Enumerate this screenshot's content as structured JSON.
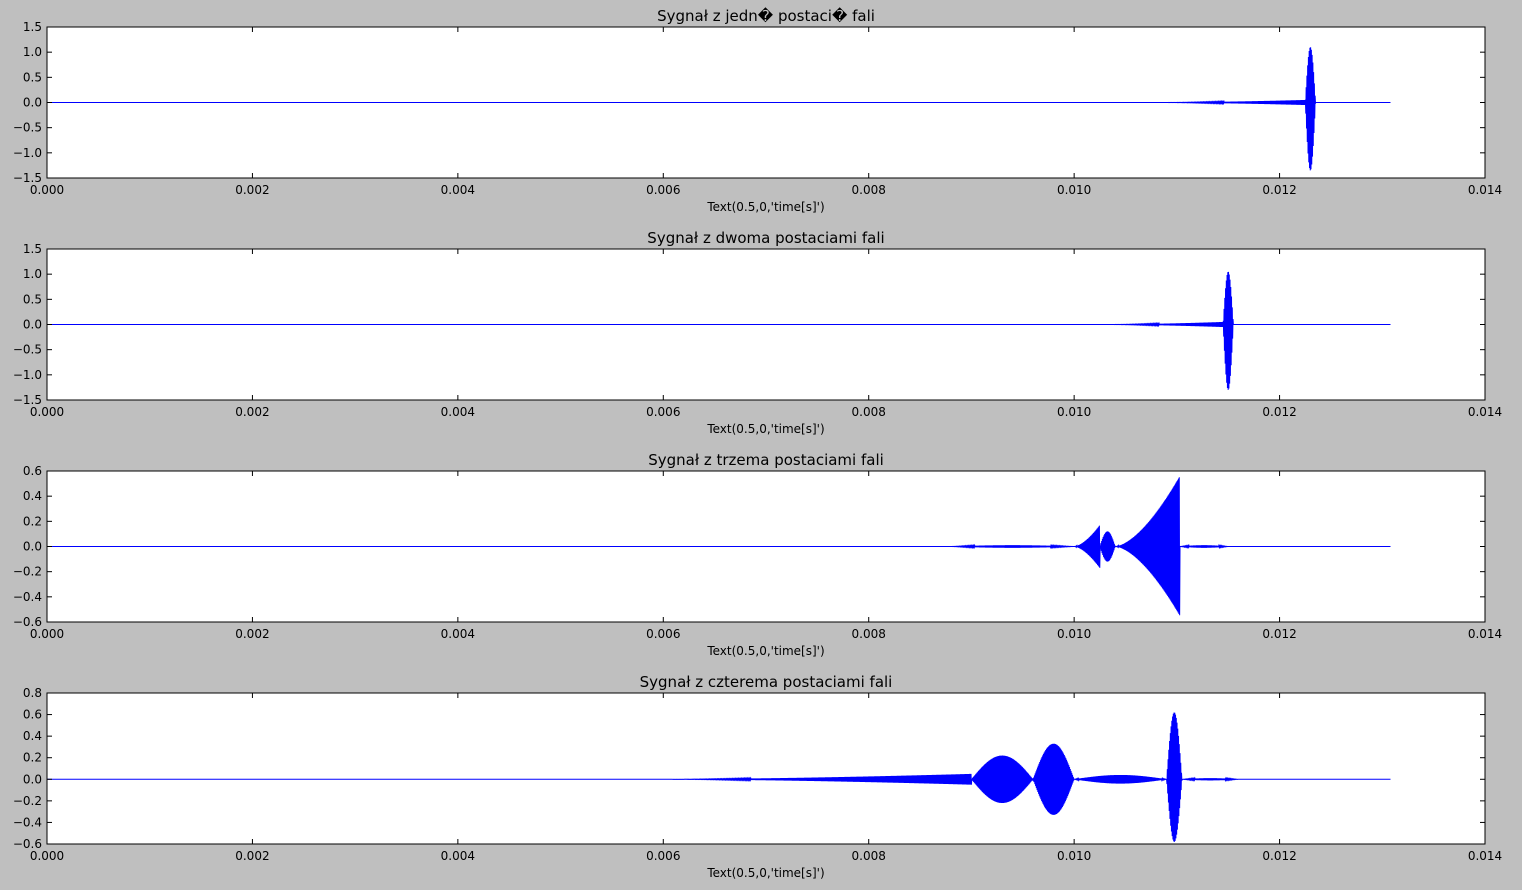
{
  "figure": {
    "background": "#bfbfbf",
    "axes_background": "#ffffff",
    "line_color": "#0000ff"
  },
  "chart_data": [
    {
      "type": "line",
      "title": "Sygnał z jedn� postaci� fali",
      "xlabel": "Text(0.5,0,'time[s]')",
      "ylabel": "",
      "xlim": [
        0,
        0.014
      ],
      "ylim": [
        -1.5,
        1.5
      ],
      "xticks": [
        "0.000",
        "0.002",
        "0.004",
        "0.006",
        "0.008",
        "0.010",
        "0.012",
        "0.014"
      ],
      "yticks": [
        "1.5",
        "1.0",
        "0.5",
        "0.0",
        "−0.5",
        "−1.0",
        "−1.5"
      ],
      "x_end": 0.01308,
      "bursts": [
        {
          "start": 0.0108,
          "end": 0.01225,
          "amp": 0.05,
          "shape": "rise"
        },
        {
          "start": 0.01225,
          "end": 0.01235,
          "amp": 1.1,
          "amp_neg": 1.35,
          "shape": "spike"
        }
      ]
    },
    {
      "type": "line",
      "title": "Sygnał z dwoma postaciami fali",
      "xlabel": "Text(0.5,0,'time[s]')",
      "ylabel": "",
      "xlim": [
        0,
        0.014
      ],
      "ylim": [
        -1.5,
        1.5
      ],
      "xticks": [
        "0.000",
        "0.002",
        "0.004",
        "0.006",
        "0.008",
        "0.010",
        "0.012",
        "0.014"
      ],
      "yticks": [
        "1.5",
        "1.0",
        "0.5",
        "0.0",
        "−0.5",
        "−1.0",
        "−1.5"
      ],
      "x_end": 0.01308,
      "bursts": [
        {
          "start": 0.0103,
          "end": 0.01145,
          "amp": 0.05,
          "shape": "rise"
        },
        {
          "start": 0.01145,
          "end": 0.01155,
          "amp": 1.05,
          "amp_neg": 1.3,
          "shape": "spike"
        }
      ]
    },
    {
      "type": "line",
      "title": "Sygnał z trzema postaciami fali",
      "xlabel": "Text(0.5,0,'time[s]')",
      "ylabel": "",
      "xlim": [
        0,
        0.014
      ],
      "ylim": [
        -0.6,
        0.6
      ],
      "xticks": [
        "0.000",
        "0.002",
        "0.004",
        "0.006",
        "0.008",
        "0.010",
        "0.012",
        "0.014"
      ],
      "yticks": [
        "0.6",
        "0.4",
        "0.2",
        "0.0",
        "−0.2",
        "−0.4",
        "−0.6"
      ],
      "x_end": 0.01308,
      "bursts": [
        {
          "start": 0.0088,
          "end": 0.01,
          "amp": 0.01,
          "shape": "flat"
        },
        {
          "start": 0.01,
          "end": 0.01025,
          "amp": 0.17,
          "shape": "rise"
        },
        {
          "start": 0.01025,
          "end": 0.0104,
          "amp": 0.12,
          "shape": "flat"
        },
        {
          "start": 0.0104,
          "end": 0.01103,
          "amp": 0.56,
          "amp_neg": 0.55,
          "shape": "rise"
        },
        {
          "start": 0.01103,
          "end": 0.0115,
          "amp": 0.01,
          "shape": "flat"
        }
      ]
    },
    {
      "type": "line",
      "title": "Sygnał z czterema postaciami fali",
      "xlabel": "Text(0.5,0,'time[s]')",
      "ylabel": "",
      "xlim": [
        0,
        0.014
      ],
      "ylim": [
        -0.6,
        0.8
      ],
      "xticks": [
        "0.000",
        "0.002",
        "0.004",
        "0.006",
        "0.008",
        "0.010",
        "0.012",
        "0.014"
      ],
      "yticks": [
        "0.8",
        "0.6",
        "0.4",
        "0.2",
        "0.0",
        "−0.2",
        "−0.4",
        "−0.6"
      ],
      "x_end": 0.01308,
      "bursts": [
        {
          "start": 0.006,
          "end": 0.009,
          "amp": 0.05,
          "shape": "rise"
        },
        {
          "start": 0.009,
          "end": 0.0096,
          "amp": 0.22,
          "shape": "flat"
        },
        {
          "start": 0.0096,
          "end": 0.01,
          "amp": 0.33,
          "shape": "flat"
        },
        {
          "start": 0.01,
          "end": 0.0109,
          "amp": 0.04,
          "shape": "flat"
        },
        {
          "start": 0.0109,
          "end": 0.01105,
          "amp": 0.62,
          "amp_neg": 0.58,
          "shape": "spike"
        },
        {
          "start": 0.01105,
          "end": 0.0116,
          "amp": 0.01,
          "shape": "flat"
        }
      ]
    }
  ]
}
